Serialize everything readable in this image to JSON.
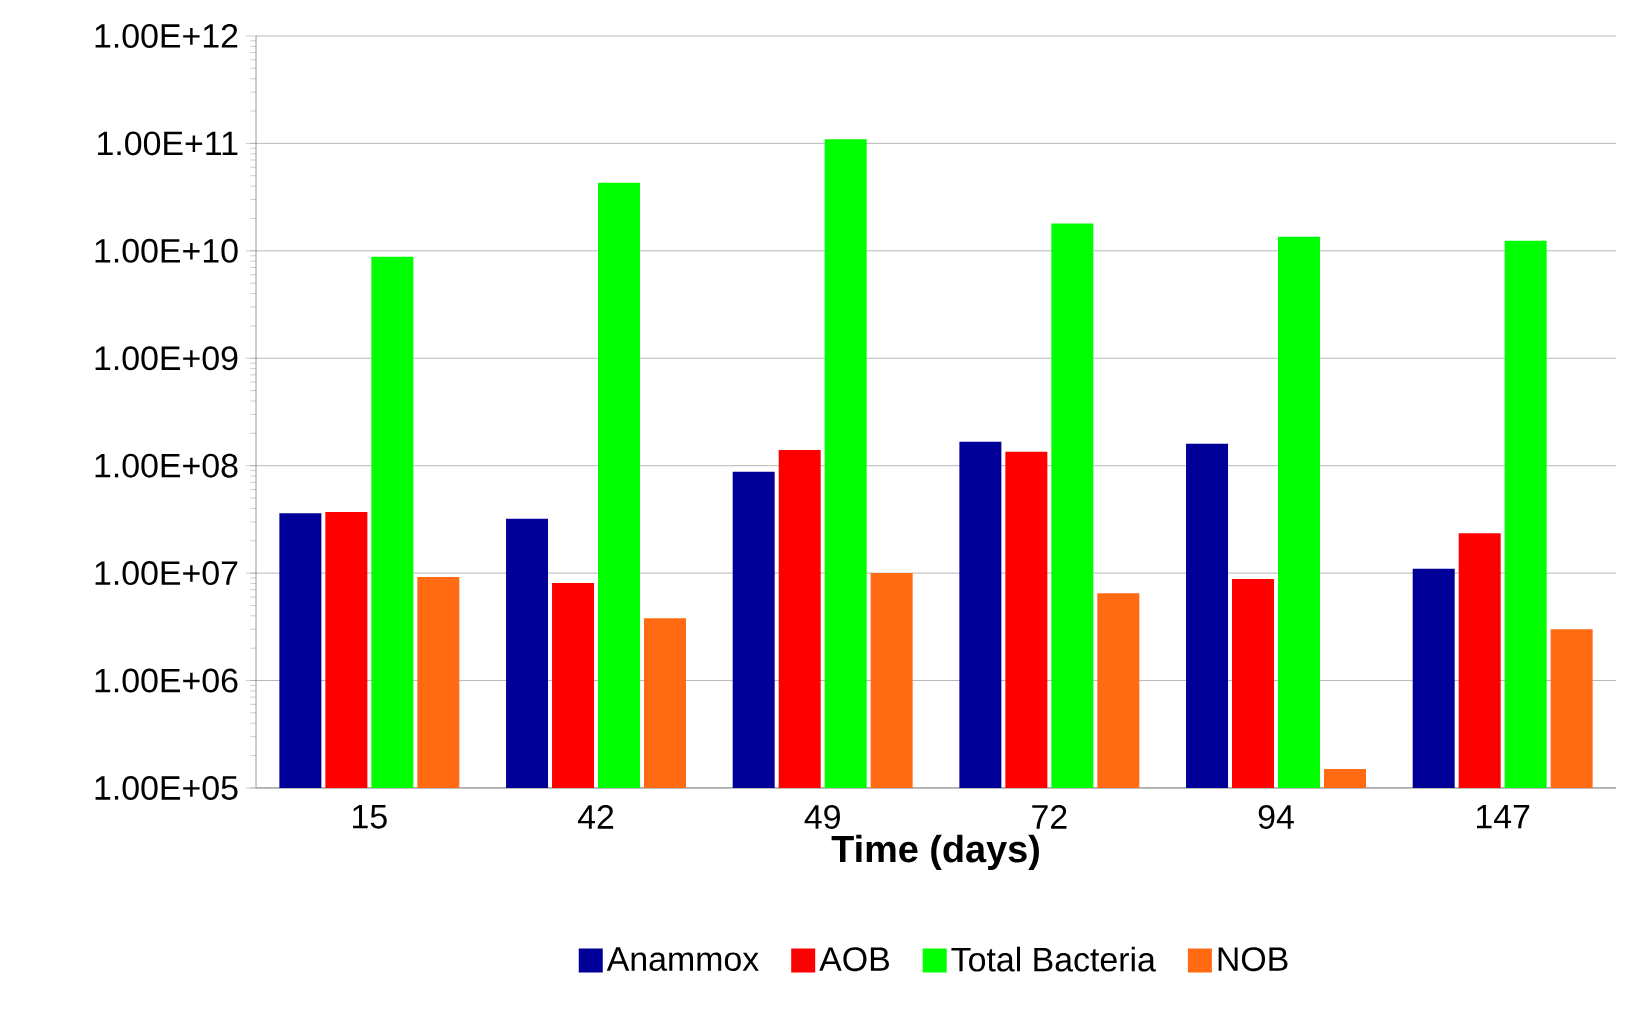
{
  "chart_data": {
    "type": "bar",
    "xlabel": "Time (days)",
    "categories": [
      "15",
      "42",
      "49",
      "72",
      "94",
      "147"
    ],
    "log": "y",
    "grid": "y",
    "legend": "bottom",
    "ylim": [
      100000,
      1000000000000
    ],
    "yticks": [
      {
        "value": 100000,
        "label": "1.00E+05"
      },
      {
        "value": 1000000,
        "label": "1.00E+06"
      },
      {
        "value": 10000000,
        "label": "1.00E+07"
      },
      {
        "value": 100000000,
        "label": "1.00E+08"
      },
      {
        "value": 1000000000,
        "label": "1.00E+09"
      },
      {
        "value": 10000000000,
        "label": "1.00E+10"
      },
      {
        "value": 100000000000,
        "label": "1.00E+11"
      },
      {
        "value": 1000000000000,
        "label": "1.00E+12"
      }
    ],
    "series": [
      {
        "name": "Anammox",
        "color": "#000099",
        "values": [
          36000000,
          32000000,
          88000000,
          167000000,
          160000000,
          11000000
        ]
      },
      {
        "name": "AOB",
        "color": "#ff0000",
        "values": [
          37000000,
          8100000,
          140000000,
          135000000,
          8800000,
          23500000
        ]
      },
      {
        "name": "Total Bacteria",
        "color": "#00ff00",
        "values": [
          8800000000,
          43000000000,
          109000000000,
          18000000000,
          13500000000,
          12400000000
        ]
      },
      {
        "name": "NOB",
        "color": "#ff6a13",
        "values": [
          9200000,
          3800000,
          10000000,
          6500000,
          150000,
          3000000
        ]
      }
    ]
  }
}
